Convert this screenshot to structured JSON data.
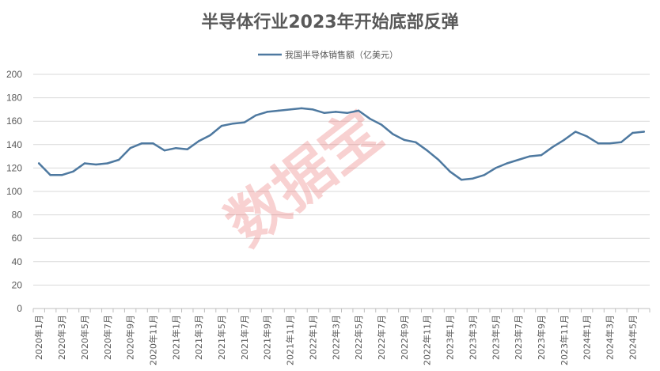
{
  "chart_data": {
    "type": "line",
    "title": "半导体行业2023年开始底部反弹",
    "legend_position": "top",
    "grid": true,
    "ylim": [
      0,
      200
    ],
    "yticks": [
      0,
      20,
      40,
      60,
      80,
      100,
      120,
      140,
      160,
      180,
      200
    ],
    "categories": [
      "2020年1月",
      "2020年2月",
      "2020年3月",
      "2020年4月",
      "2020年5月",
      "2020年6月",
      "2020年7月",
      "2020年8月",
      "2020年9月",
      "2020年10月",
      "2020年11月",
      "2020年12月",
      "2021年1月",
      "2021年2月",
      "2021年3月",
      "2021年4月",
      "2021年5月",
      "2021年6月",
      "2021年7月",
      "2021年8月",
      "2021年9月",
      "2021年10月",
      "2021年11月",
      "2021年12月",
      "2022年1月",
      "2022年2月",
      "2022年3月",
      "2022年4月",
      "2022年5月",
      "2022年6月",
      "2022年7月",
      "2022年8月",
      "2022年9月",
      "2022年10月",
      "2022年11月",
      "2022年12月",
      "2023年1月",
      "2023年2月",
      "2023年3月",
      "2023年4月",
      "2023年5月",
      "2023年6月",
      "2023年7月",
      "2023年8月",
      "2023年9月",
      "2023年10月",
      "2023年11月",
      "2023年12月",
      "2024年1月",
      "2024年2月",
      "2024年3月",
      "2024年4月",
      "2024年5月",
      "2024年6月"
    ],
    "xtick_labels": [
      "2020年1月",
      "2020年3月",
      "2020年5月",
      "2020年7月",
      "2020年9月",
      "2020年11月",
      "2021年1月",
      "2021年3月",
      "2021年5月",
      "2021年7月",
      "2021年9月",
      "2021年11月",
      "2022年1月",
      "2022年3月",
      "2022年5月",
      "2022年7月",
      "2022年9月",
      "2022年11月",
      "2023年1月",
      "2023年3月",
      "2023年5月",
      "2023年7月",
      "2023年9月",
      "2023年11月",
      "2024年1月",
      "2024年3月",
      "2024年5月"
    ],
    "series": [
      {
        "name": "我国半导体销售额（亿美元）",
        "color": "#4e79a0",
        "values": [
          124,
          114,
          114,
          117,
          124,
          123,
          124,
          127,
          137,
          141,
          141,
          135,
          137,
          136,
          143,
          148,
          156,
          158,
          159,
          165,
          168,
          169,
          170,
          171,
          170,
          167,
          168,
          167,
          169,
          162,
          157,
          149,
          144,
          142,
          135,
          127,
          117,
          110,
          111,
          114,
          120,
          124,
          127,
          130,
          131,
          138,
          144,
          151,
          147,
          141,
          141,
          142,
          150,
          151
        ]
      }
    ]
  },
  "watermark": "数据宝"
}
